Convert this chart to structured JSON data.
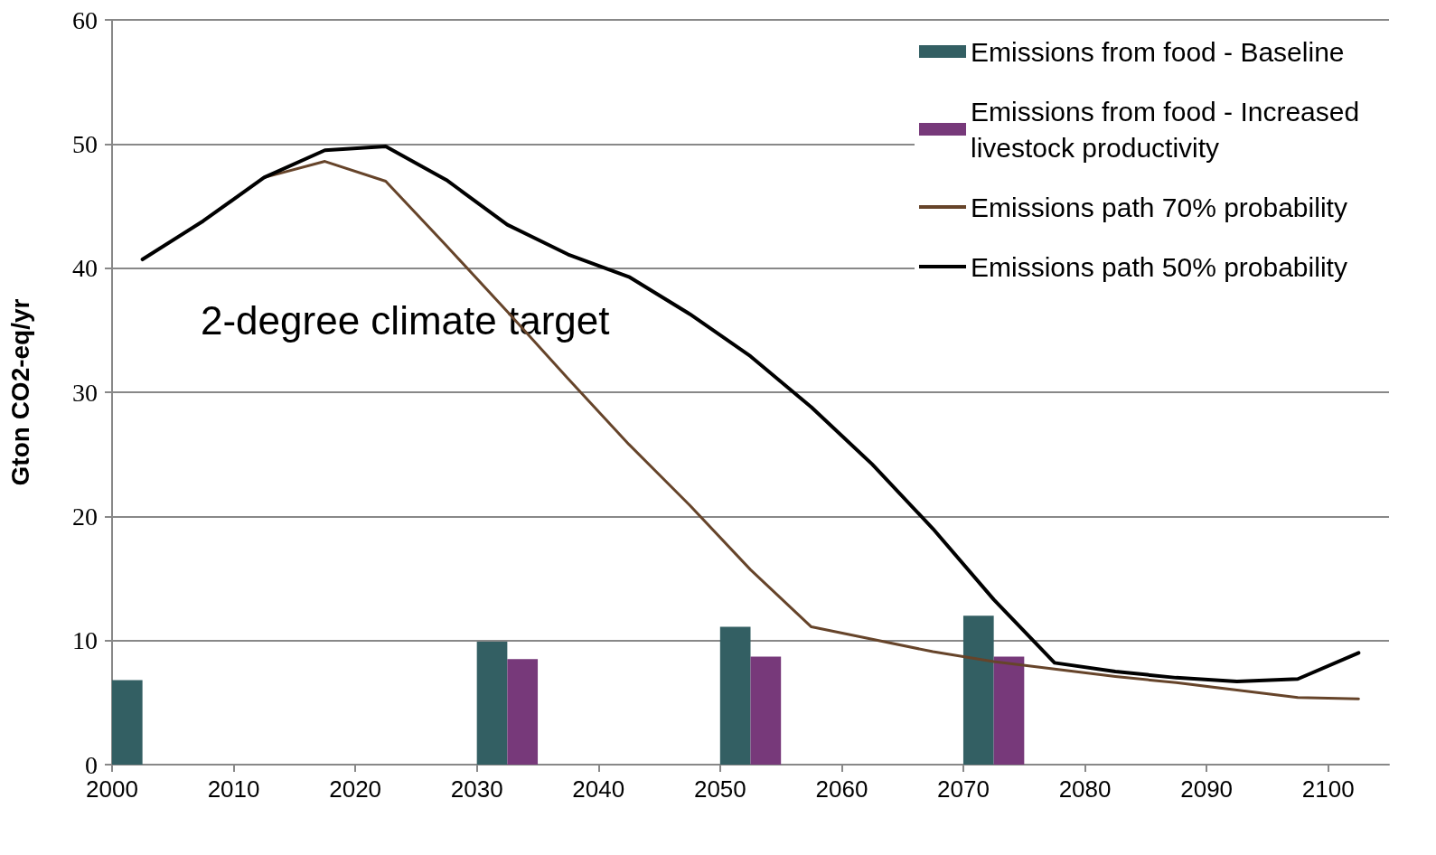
{
  "chart_data": {
    "type": "bar",
    "ylabel": "Gton CO2-eq/yr",
    "xlim": [
      2000,
      2105
    ],
    "xticks": [
      2000,
      2010,
      2020,
      2030,
      2040,
      2050,
      2060,
      2070,
      2080,
      2090,
      2100
    ],
    "ylim": [
      0,
      60
    ],
    "yticks": [
      0,
      10,
      20,
      30,
      40,
      50,
      60
    ],
    "grid": "y",
    "legend": "top right",
    "marker": "none",
    "annotations": [
      "2-degree climate target"
    ],
    "series": [
      {
        "name": "Emissions from food - Baseline",
        "color": "#335f63",
        "x": [
          2002.5,
          2032.5,
          2052.5,
          2072.5
        ],
        "values": [
          6.8,
          9.9,
          11.1,
          12.0
        ]
      },
      {
        "name": "Emissions from food - Increased livestock productivity",
        "color": "#77397a",
        "x": [
          2032.5,
          2052.5,
          2072.5
        ],
        "values": [
          8.5,
          8.7,
          8.7
        ]
      },
      {
        "name": "Emissions path 70% probability",
        "type": "line",
        "color": "#66442a",
        "x": [
          2012.5,
          2017.5,
          2022.5,
          2027.5,
          2032.5,
          2037.5,
          2042.5,
          2047.5,
          2052.5,
          2057.5,
          2062.5,
          2067.5,
          2072.5,
          2077.5,
          2082.5,
          2087.5,
          2092.5,
          2097.5,
          2102.5
        ],
        "values": [
          47.3,
          48.6,
          47.0,
          41.8,
          36.5,
          31.1,
          25.8,
          20.9,
          15.7,
          11.1,
          10.1,
          9.1,
          8.3,
          7.7,
          7.1,
          6.6,
          6.0,
          5.4,
          5.3
        ]
      },
      {
        "name": "Emissions path 50% probability",
        "type": "line",
        "color": "#000000",
        "x": [
          2002.5,
          2007.5,
          2012.5,
          2017.5,
          2022.5,
          2027.5,
          2032.5,
          2037.5,
          2042.5,
          2047.5,
          2052.5,
          2057.5,
          2062.5,
          2067.5,
          2072.5,
          2077.5,
          2082.5,
          2087.5,
          2092.5,
          2097.5,
          2102.5
        ],
        "values": [
          40.7,
          43.8,
          47.3,
          49.5,
          49.8,
          47.1,
          43.5,
          41.1,
          39.3,
          36.3,
          32.9,
          28.8,
          24.2,
          19.0,
          13.3,
          8.2,
          7.5,
          7.0,
          6.7,
          6.9,
          9.0
        ]
      }
    ]
  }
}
